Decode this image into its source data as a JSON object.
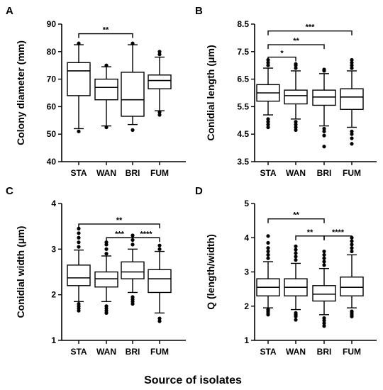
{
  "figure": {
    "x_title": "Source of isolates"
  },
  "chart_data": [
    {
      "type": "box",
      "panel": "A",
      "ylabel": "Colony diameter (mm)",
      "ylim": [
        40,
        90
      ],
      "yticks": [
        40,
        50,
        60,
        70,
        80,
        90
      ],
      "categories": [
        "STA",
        "WAN",
        "BRI",
        "FUM"
      ],
      "boxes": [
        {
          "whisker_low": 52,
          "q1": 64,
          "median": 73,
          "q3": 76,
          "whisker_high": 82.5,
          "outliers": [
            51,
            83
          ]
        },
        {
          "whisker_low": 53,
          "q1": 62.5,
          "median": 67,
          "q3": 70,
          "whisker_high": 74.5,
          "outliers": [
            52.5,
            75
          ]
        },
        {
          "whisker_low": 53.5,
          "q1": 56.5,
          "median": 62.5,
          "q3": 72.5,
          "whisker_high": 82.5,
          "outliers": [
            51.5,
            83
          ]
        },
        {
          "whisker_low": 58.5,
          "q1": 66.5,
          "median": 69.5,
          "q3": 71.5,
          "whisker_high": 78,
          "outliers": [
            57,
            58,
            79,
            80
          ]
        }
      ],
      "significance": [
        {
          "from": 0,
          "to": 2,
          "y": 86.5,
          "label": "**"
        }
      ]
    },
    {
      "type": "box",
      "panel": "B",
      "ylabel": "Conidial length (μm)",
      "ylim": [
        3.5,
        8.5
      ],
      "yticks": [
        3.5,
        4.5,
        5.5,
        6.5,
        7.5,
        8.5
      ],
      "categories": [
        "STA",
        "WAN",
        "BRI",
        "FUM"
      ],
      "boxes": [
        {
          "whisker_low": 5.2,
          "q1": 5.7,
          "median": 6.0,
          "q3": 6.3,
          "whisker_high": 6.9,
          "outliers": [
            4.75,
            4.85,
            4.95,
            5.05,
            7.0,
            7.1,
            7.2
          ]
        },
        {
          "whisker_low": 5.05,
          "q1": 5.6,
          "median": 5.9,
          "q3": 6.1,
          "whisker_high": 6.8,
          "outliers": [
            4.65,
            4.75,
            4.85,
            4.95,
            6.9,
            7.0,
            7.05
          ]
        },
        {
          "whisker_low": 4.8,
          "q1": 5.55,
          "median": 5.85,
          "q3": 6.1,
          "whisker_high": 6.7,
          "outliers": [
            4.05,
            4.45,
            4.6,
            4.7,
            6.8,
            6.85
          ]
        },
        {
          "whisker_low": 4.75,
          "q1": 5.4,
          "median": 5.85,
          "q3": 6.15,
          "whisker_high": 6.8,
          "outliers": [
            4.15,
            4.35,
            4.5,
            4.6,
            6.9,
            7.0,
            7.1,
            7.2
          ]
        }
      ],
      "significance": [
        {
          "from": 0,
          "to": 1,
          "y": 7.3,
          "label": "*"
        },
        {
          "from": 0,
          "to": 2,
          "y": 7.75,
          "label": "**"
        },
        {
          "from": 0,
          "to": 3,
          "y": 8.25,
          "label": "***"
        }
      ]
    },
    {
      "type": "box",
      "panel": "C",
      "ylabel": "Conidial width (μm)",
      "ylim": [
        1,
        4
      ],
      "yticks": [
        1,
        2,
        3,
        4
      ],
      "categories": [
        "STA",
        "WAN",
        "BRI",
        "FUM"
      ],
      "boxes": [
        {
          "whisker_low": 1.85,
          "q1": 2.2,
          "median": 2.37,
          "q3": 2.65,
          "whisker_high": 2.98,
          "outliers": [
            1.65,
            1.7,
            1.75,
            1.8,
            3.05,
            3.15,
            3.25,
            3.35,
            3.45
          ]
        },
        {
          "whisker_low": 1.85,
          "q1": 2.17,
          "median": 2.35,
          "q3": 2.5,
          "whisker_high": 2.85,
          "outliers": [
            1.6,
            1.65,
            1.7,
            1.75,
            2.9,
            3.0,
            3.1,
            3.15
          ]
        },
        {
          "whisker_low": 2.05,
          "q1": 2.35,
          "median": 2.5,
          "q3": 2.72,
          "whisker_high": 3.0,
          "outliers": [
            1.8,
            1.85,
            1.9,
            1.95,
            3.1,
            3.2,
            3.3
          ]
        },
        {
          "whisker_low": 1.6,
          "q1": 2.05,
          "median": 2.35,
          "q3": 2.55,
          "whisker_high": 2.95,
          "outliers": [
            1.42,
            1.48,
            3.0,
            3.08
          ]
        }
      ],
      "significance": [
        {
          "from": 1,
          "to": 2,
          "y": 3.25,
          "label": "***"
        },
        {
          "from": 2,
          "to": 3,
          "y": 3.25,
          "label": "****"
        },
        {
          "from": 0,
          "to": 3,
          "y": 3.55,
          "label": "**"
        }
      ]
    },
    {
      "type": "box",
      "panel": "D",
      "ylabel": "Q (length/width)",
      "ylim": [
        1,
        5
      ],
      "yticks": [
        1,
        2,
        3,
        4,
        5
      ],
      "categories": [
        "STA",
        "WAN",
        "BRI",
        "FUM"
      ],
      "boxes": [
        {
          "whisker_low": 1.95,
          "q1": 2.3,
          "median": 2.55,
          "q3": 2.8,
          "whisker_high": 3.3,
          "outliers": [
            1.75,
            1.8,
            1.85,
            1.9,
            3.4,
            3.5,
            3.6,
            3.7,
            3.85,
            4.05
          ]
        },
        {
          "whisker_low": 1.9,
          "q1": 2.3,
          "median": 2.55,
          "q3": 2.8,
          "whisker_high": 3.25,
          "outliers": [
            1.6,
            1.7,
            1.75,
            1.8,
            3.35,
            3.45,
            3.55,
            3.65,
            3.75
          ]
        },
        {
          "whisker_low": 1.75,
          "q1": 2.15,
          "median": 2.35,
          "q3": 2.6,
          "whisker_high": 3.1,
          "outliers": [
            1.42,
            1.5,
            1.58,
            1.65,
            3.2,
            3.3,
            3.4,
            3.5,
            3.6
          ]
        },
        {
          "whisker_low": 1.95,
          "q1": 2.3,
          "median": 2.55,
          "q3": 2.85,
          "whisker_high": 3.5,
          "outliers": [
            1.7,
            1.75,
            1.8,
            1.85,
            3.6,
            3.7,
            3.8,
            3.9,
            4.0
          ]
        }
      ],
      "significance": [
        {
          "from": 2,
          "to": 3,
          "y": 4.05,
          "label": "****"
        },
        {
          "from": 1,
          "to": 2,
          "y": 4.05,
          "label": "**"
        },
        {
          "from": 0,
          "to": 2,
          "y": 4.55,
          "label": "**"
        }
      ]
    }
  ]
}
